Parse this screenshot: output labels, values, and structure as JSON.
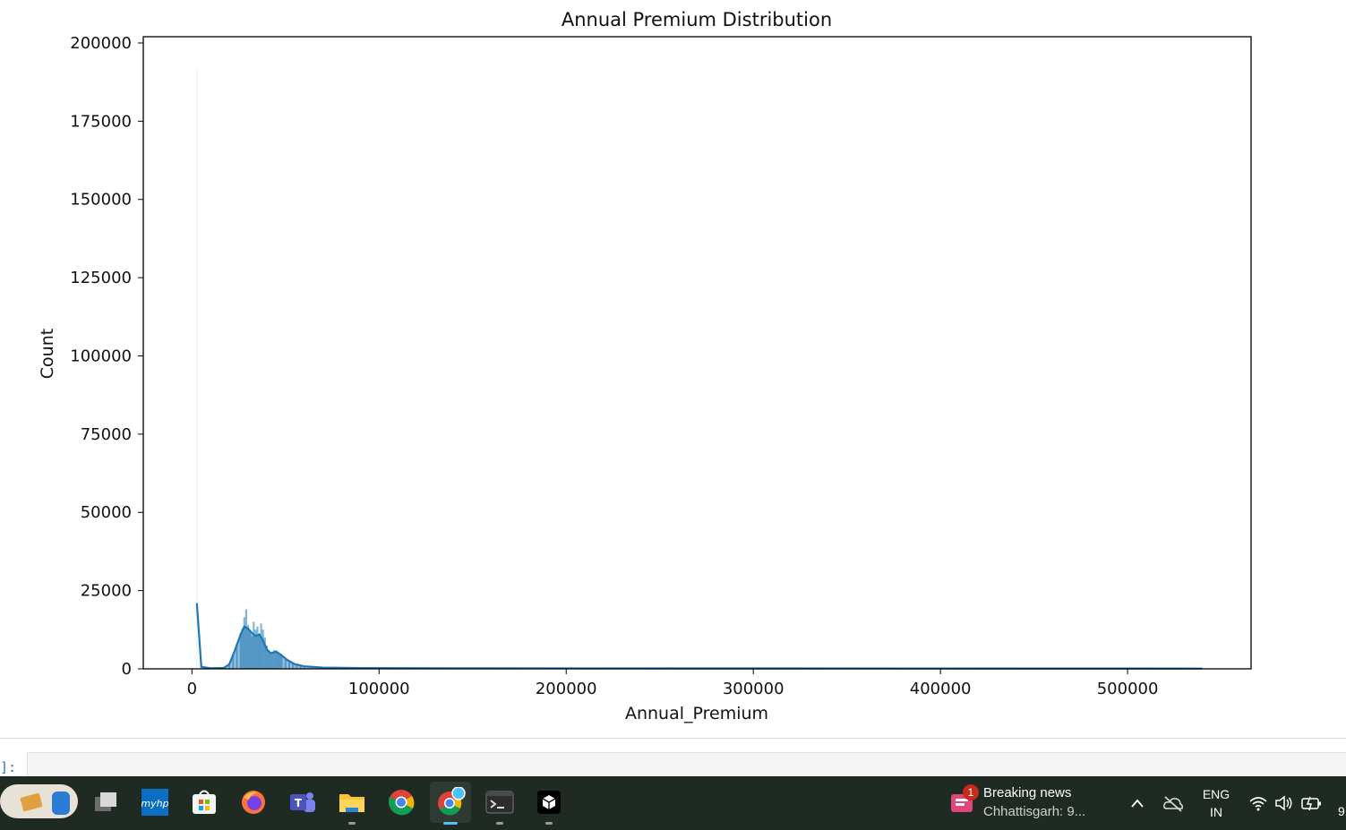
{
  "chart_data": {
    "type": "histogram",
    "title": "Annual Premium Distribution",
    "xlabel": "Annual_Premium",
    "ylabel": "Count",
    "xlim": [
      -26000,
      566000
    ],
    "ylim": [
      0,
      202000
    ],
    "x_ticks": [
      0,
      100000,
      200000,
      300000,
      400000,
      500000
    ],
    "y_ticks": [
      0,
      25000,
      50000,
      75000,
      100000,
      125000,
      150000,
      175000,
      200000
    ],
    "color": "#1f77b4",
    "histogram_bins": [
      {
        "x": 2630,
        "count": 192000
      },
      {
        "x": 20000,
        "count": 1500
      },
      {
        "x": 22000,
        "count": 4500
      },
      {
        "x": 24000,
        "count": 8000
      },
      {
        "x": 26000,
        "count": 11500
      },
      {
        "x": 27000,
        "count": 13000
      },
      {
        "x": 28000,
        "count": 16500
      },
      {
        "x": 29000,
        "count": 19000
      },
      {
        "x": 30000,
        "count": 14000
      },
      {
        "x": 31000,
        "count": 12000
      },
      {
        "x": 32000,
        "count": 10500
      },
      {
        "x": 33000,
        "count": 15000
      },
      {
        "x": 34000,
        "count": 12500
      },
      {
        "x": 35000,
        "count": 13500
      },
      {
        "x": 36000,
        "count": 11000
      },
      {
        "x": 37000,
        "count": 14500
      },
      {
        "x": 38000,
        "count": 12500
      },
      {
        "x": 39000,
        "count": 10000
      },
      {
        "x": 40000,
        "count": 7500
      },
      {
        "x": 41000,
        "count": 6000
      },
      {
        "x": 42000,
        "count": 5000
      },
      {
        "x": 43000,
        "count": 5500
      },
      {
        "x": 44000,
        "count": 6000
      },
      {
        "x": 45000,
        "count": 5800
      },
      {
        "x": 46000,
        "count": 5500
      },
      {
        "x": 47000,
        "count": 5000
      },
      {
        "x": 48000,
        "count": 4500
      },
      {
        "x": 50000,
        "count": 3500
      },
      {
        "x": 52000,
        "count": 2500
      },
      {
        "x": 54000,
        "count": 1800
      },
      {
        "x": 56000,
        "count": 1200
      },
      {
        "x": 58000,
        "count": 800
      },
      {
        "x": 60000,
        "count": 500
      },
      {
        "x": 64000,
        "count": 300
      }
    ],
    "kde": [
      {
        "x": 2630,
        "y": 21000
      },
      {
        "x": 5000,
        "y": 600
      },
      {
        "x": 10000,
        "y": 200
      },
      {
        "x": 17000,
        "y": 300
      },
      {
        "x": 20000,
        "y": 1500
      },
      {
        "x": 23000,
        "y": 6000
      },
      {
        "x": 26000,
        "y": 11000
      },
      {
        "x": 28000,
        "y": 13500
      },
      {
        "x": 30000,
        "y": 12800
      },
      {
        "x": 32000,
        "y": 11500
      },
      {
        "x": 34000,
        "y": 10500
      },
      {
        "x": 36000,
        "y": 11000
      },
      {
        "x": 38000,
        "y": 9000
      },
      {
        "x": 40000,
        "y": 6200
      },
      {
        "x": 42000,
        "y": 5000
      },
      {
        "x": 45000,
        "y": 5500
      },
      {
        "x": 48000,
        "y": 4300
      },
      {
        "x": 51000,
        "y": 2800
      },
      {
        "x": 55000,
        "y": 1500
      },
      {
        "x": 60000,
        "y": 800
      },
      {
        "x": 70000,
        "y": 400
      },
      {
        "x": 90000,
        "y": 250
      },
      {
        "x": 150000,
        "y": 180
      },
      {
        "x": 300000,
        "y": 150
      },
      {
        "x": 450000,
        "y": 120
      },
      {
        "x": 540000,
        "y": 100
      }
    ]
  },
  "notebook": {
    "prompt": "]:"
  },
  "taskbar": {
    "apps": [
      {
        "name": "task-view",
        "icon": "task-view-icon"
      },
      {
        "name": "myhp",
        "icon": "myhp-icon",
        "label": "myhp"
      },
      {
        "name": "microsoft-store",
        "icon": "store-icon"
      },
      {
        "name": "firefox",
        "icon": "firefox-icon"
      },
      {
        "name": "teams",
        "icon": "teams-icon",
        "label": "T"
      },
      {
        "name": "file-explorer",
        "icon": "folder-icon"
      },
      {
        "name": "chrome",
        "icon": "chrome-icon"
      },
      {
        "name": "chrome-profile",
        "icon": "chrome-profile-icon"
      },
      {
        "name": "terminal",
        "icon": "terminal-icon"
      },
      {
        "name": "app-cube",
        "icon": "cube-icon"
      }
    ],
    "news": {
      "badge": "1",
      "title": "Breaking news",
      "subtitle": "Chhattisgarh: 9..."
    },
    "language": {
      "line1": "ENG",
      "line2": "IN"
    },
    "clock": "9"
  }
}
